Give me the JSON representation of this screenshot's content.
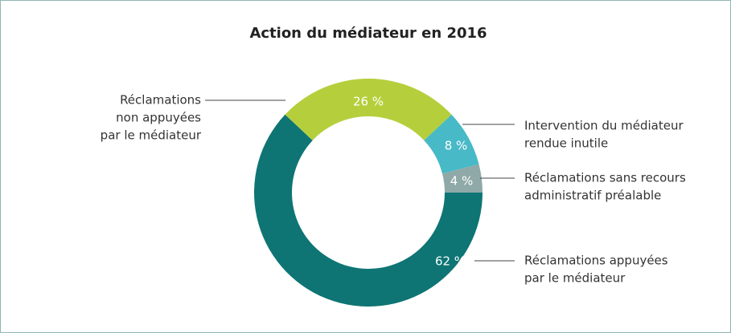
{
  "chart_data": {
    "type": "donut",
    "title": "Action du médiateur en 2016",
    "categories": [
      [
        "Réclamations appuyées",
        "par le médiateur"
      ],
      [
        "Réclamations",
        "non appuyées",
        "par le médiateur"
      ],
      [
        "Intervention du médiateur",
        "rendue inutile"
      ],
      [
        "Réclamations sans recours",
        "administratif préalable"
      ]
    ],
    "values": [
      62,
      26,
      8,
      4
    ],
    "value_labels": [
      "62 %",
      "26 %",
      "8 %",
      "4 %"
    ],
    "colors": [
      "#0e7574",
      "#b5cf3c",
      "#48b9c7",
      "#8fa9a8"
    ]
  }
}
